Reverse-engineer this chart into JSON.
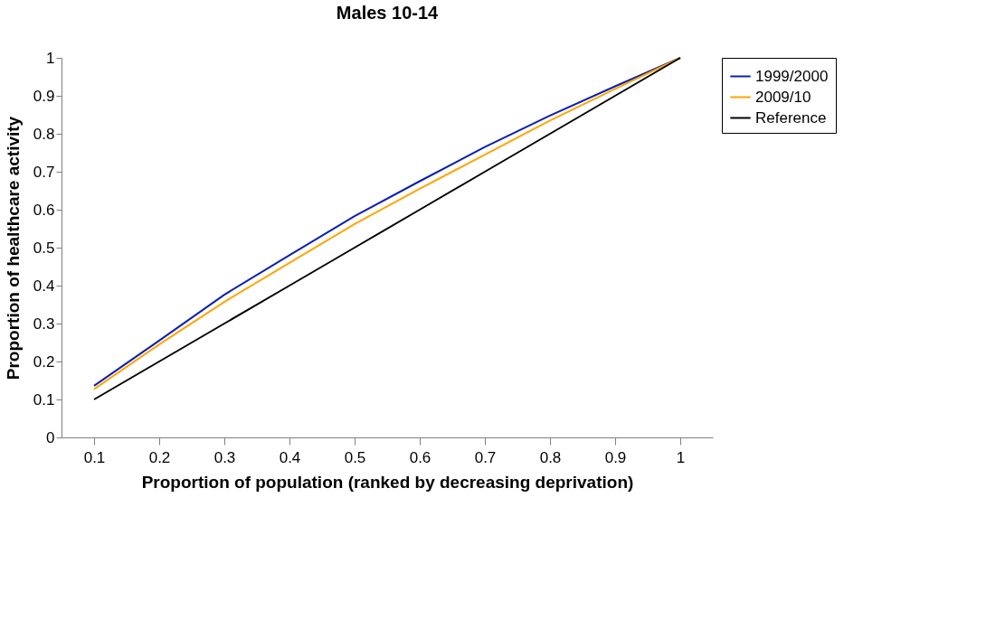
{
  "chart_data": {
    "type": "line",
    "title": "Males 10-14",
    "xlabel": "Proportion of population (ranked by decreasing deprivation)",
    "ylabel": "Proportion of healthcare activity",
    "categories": [
      "0.1",
      "0.2",
      "0.3",
      "0.4",
      "0.5",
      "0.6",
      "0.7",
      "0.8",
      "0.9",
      "1"
    ],
    "series": [
      {
        "name": "1999/2000",
        "color": "#0a1fb4",
        "values": [
          0.136,
          0.255,
          0.376,
          0.48,
          0.583,
          0.675,
          0.765,
          0.848,
          0.925,
          1
        ]
      },
      {
        "name": "2009/10",
        "color": "#ffa500",
        "values": [
          0.127,
          0.245,
          0.357,
          0.46,
          0.562,
          0.655,
          0.745,
          0.835,
          0.918,
          1
        ]
      },
      {
        "name": "Reference",
        "color": "#000000",
        "values": [
          0.1,
          0.2,
          0.3,
          0.4,
          0.5,
          0.6,
          0.7,
          0.8,
          0.9,
          1
        ]
      }
    ],
    "ylim": [
      0,
      1
    ],
    "yticks": [
      0,
      0.1,
      0.2,
      0.3,
      0.4,
      0.5,
      0.6,
      0.7,
      0.8,
      0.9,
      1
    ],
    "grid": false,
    "legend": "right",
    "marker": "none",
    "line_style": "solid"
  }
}
